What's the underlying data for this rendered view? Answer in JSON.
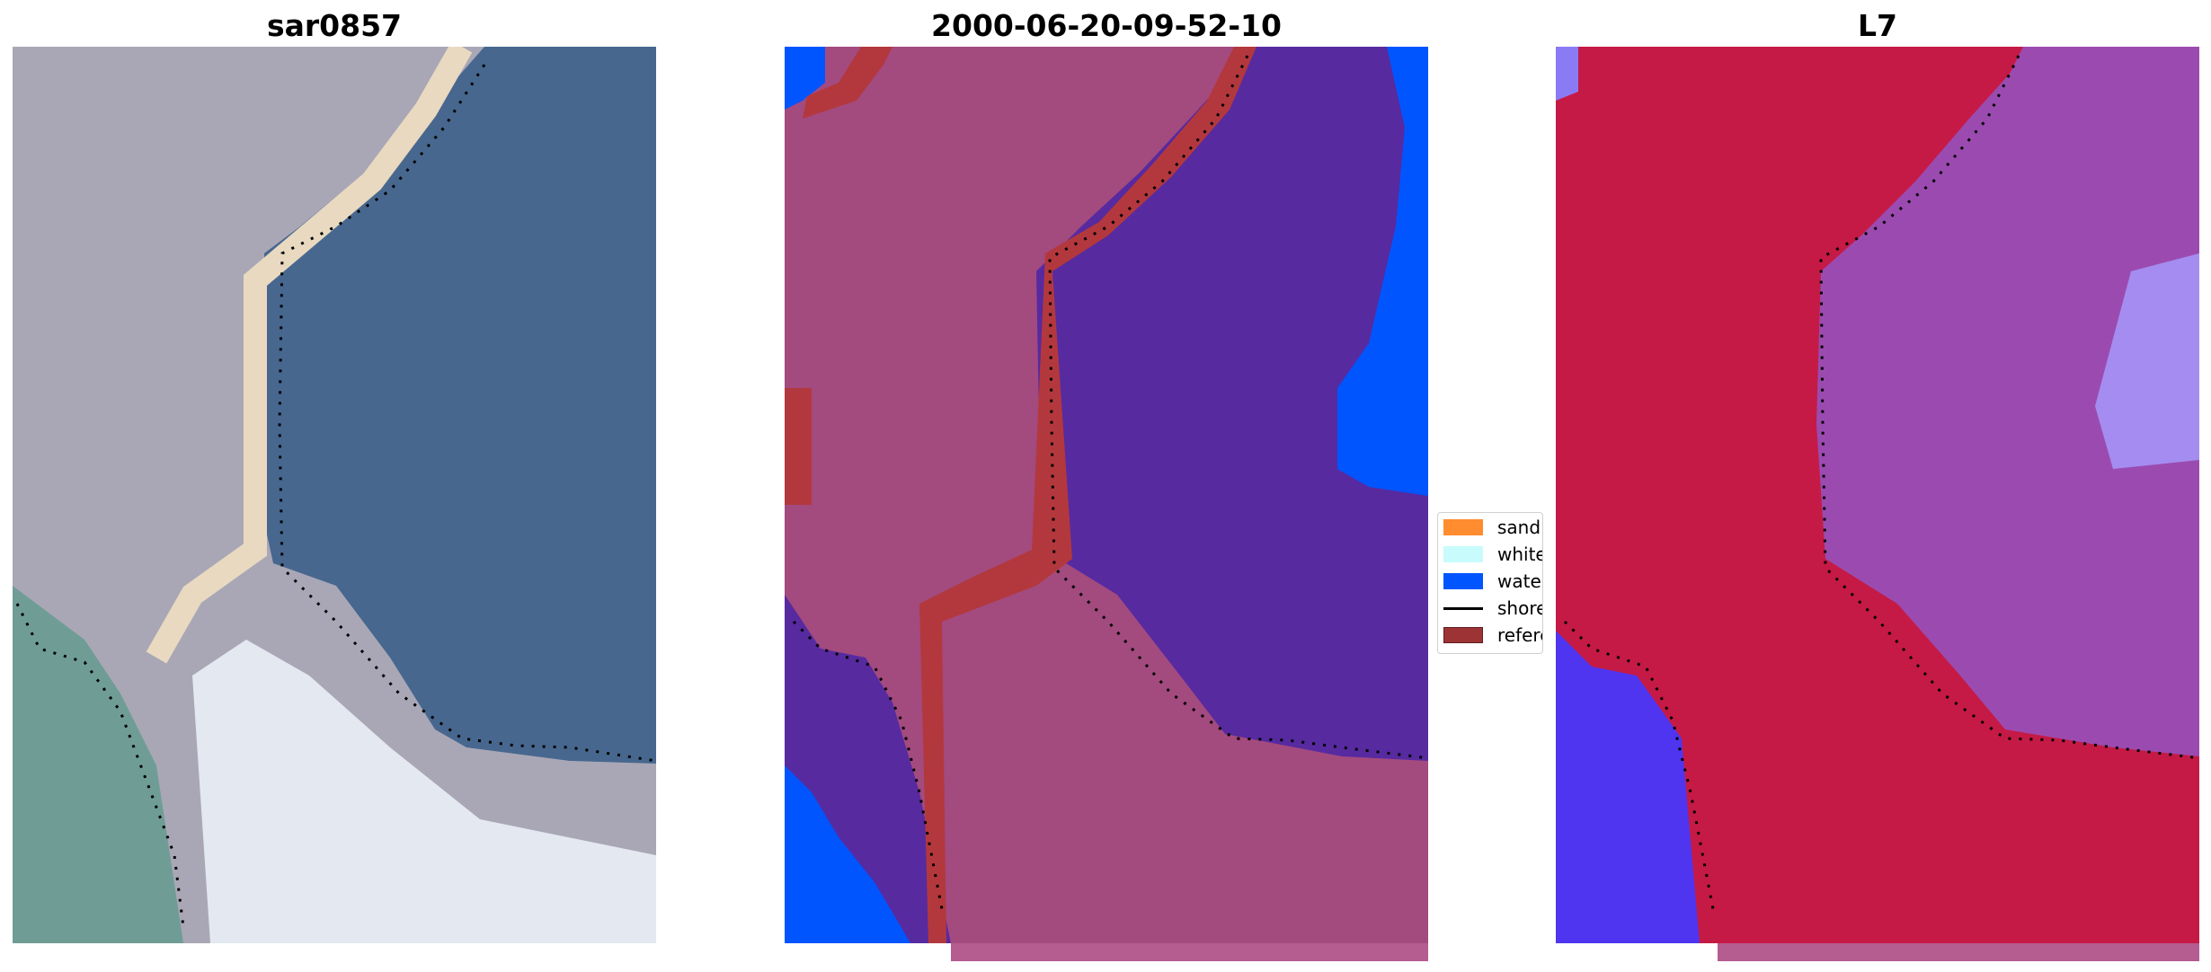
{
  "panels": [
    {
      "title": "sar0857"
    },
    {
      "title": "2000-06-20-09-52-10"
    },
    {
      "title": "L7"
    }
  ],
  "legend": {
    "items": [
      {
        "label": "sand",
        "color": "#ff8c2f",
        "kind": "patch"
      },
      {
        "label": "whitewater",
        "color": "#c8fcfc",
        "kind": "patch"
      },
      {
        "label": "water",
        "color": "#0055ff",
        "kind": "patch"
      },
      {
        "label": "shoreline",
        "color": "#000000",
        "kind": "line"
      },
      {
        "label": "reference shoreline",
        "color": "#9e3335",
        "kind": "patch"
      }
    ]
  },
  "colors": {
    "rgb_water": "#47678f",
    "rgb_land": "#a9a7b6",
    "class_water": "#572aa0",
    "class_open_water": "#0055ff",
    "class_land": "#a34a7f",
    "class_reference": "#b3383d",
    "index_land": "#c51a45",
    "index_water": "#9b4bb0",
    "index_low": "#5035f0"
  }
}
